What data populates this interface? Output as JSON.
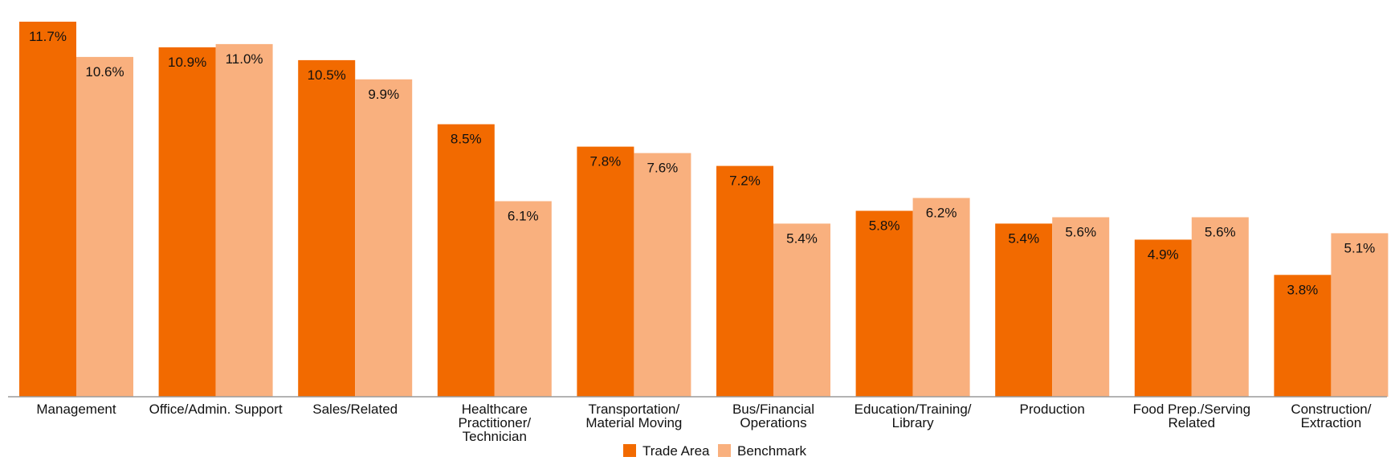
{
  "chart_data": {
    "type": "bar",
    "title": "",
    "xlabel": "",
    "ylabel": "",
    "ylim": [
      0,
      12.2
    ],
    "grid": false,
    "legend_position": "bottom-center",
    "categories": [
      [
        "Management"
      ],
      [
        "Office/Admin. Support"
      ],
      [
        "Sales/Related"
      ],
      [
        "Healthcare",
        "Practitioner/",
        "Technician"
      ],
      [
        "Transportation/",
        "Material Moving"
      ],
      [
        "Bus/Financial",
        "Operations"
      ],
      [
        "Education/Training/",
        "Library"
      ],
      [
        "Production"
      ],
      [
        "Food Prep./Serving",
        "Related"
      ],
      [
        "Construction/",
        "Extraction"
      ]
    ],
    "series": [
      {
        "name": "Trade Area",
        "color": "#F26A00",
        "values": [
          11.7,
          10.9,
          10.5,
          8.5,
          7.8,
          7.2,
          5.8,
          5.4,
          4.9,
          3.8
        ],
        "labels": [
          "11.7%",
          "10.9%",
          "10.5%",
          "8.5%",
          "7.8%",
          "7.2%",
          "5.8%",
          "5.4%",
          "4.9%",
          "3.8%"
        ]
      },
      {
        "name": "Benchmark",
        "color": "#F9B07E",
        "values": [
          10.6,
          11.0,
          9.9,
          6.1,
          7.6,
          5.4,
          6.2,
          5.6,
          5.6,
          5.1
        ],
        "labels": [
          "10.6%",
          "11.0%",
          "9.9%",
          "6.1%",
          "7.6%",
          "5.4%",
          "6.2%",
          "5.6%",
          "5.6%",
          "5.1%"
        ]
      }
    ]
  }
}
